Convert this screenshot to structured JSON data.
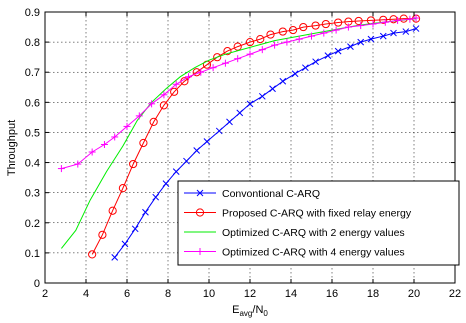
{
  "chart_data": {
    "type": "line",
    "title": "",
    "xlabel": "E_avg/N_0",
    "xlabel_parts": {
      "base": "E",
      "sub1": "avg",
      "slash": "/N",
      "sub2": "0"
    },
    "ylabel": "Throughput",
    "xlim": [
      2,
      22
    ],
    "ylim": [
      0,
      0.9
    ],
    "xticks": [
      2,
      4,
      6,
      8,
      10,
      12,
      14,
      16,
      18,
      20,
      22
    ],
    "yticks": [
      0,
      0.1,
      0.2,
      0.3,
      0.4,
      0.5,
      0.6,
      0.7,
      0.8,
      0.9
    ],
    "xtick_labels": [
      "2",
      "4",
      "6",
      "8",
      "10",
      "12",
      "14",
      "16",
      "18",
      "20",
      "22"
    ],
    "ytick_labels": [
      "0",
      "0.1",
      "0.2",
      "0.3",
      "0.4",
      "0.5",
      "0.6",
      "0.7",
      "0.8",
      "0.9"
    ],
    "grid": true,
    "legend_position": "bottom-right",
    "series": [
      {
        "name": "Convontional C-ARQ",
        "color": "#0000ff",
        "marker": "x",
        "x": [
          5.4,
          5.9,
          6.4,
          6.9,
          7.4,
          7.9,
          8.4,
          8.9,
          9.4,
          9.9,
          10.5,
          11.0,
          11.5,
          12.0,
          12.6,
          13.1,
          13.6,
          14.2,
          14.7,
          15.2,
          15.8,
          16.3,
          16.9,
          17.4,
          17.9,
          18.5,
          19.0,
          19.6,
          20.1
        ],
        "y": [
          0.085,
          0.13,
          0.18,
          0.235,
          0.285,
          0.33,
          0.37,
          0.405,
          0.44,
          0.47,
          0.505,
          0.535,
          0.565,
          0.595,
          0.62,
          0.645,
          0.67,
          0.695,
          0.715,
          0.735,
          0.755,
          0.77,
          0.785,
          0.8,
          0.81,
          0.82,
          0.83,
          0.835,
          0.845
        ]
      },
      {
        "name": "Proposed C-ARQ  with fixed relay energy",
        "color": "#ff0000",
        "marker": "o",
        "x": [
          4.3,
          4.8,
          5.3,
          5.8,
          6.3,
          6.8,
          7.3,
          7.8,
          8.3,
          8.8,
          9.4,
          9.9,
          10.4,
          10.9,
          11.4,
          12.0,
          12.5,
          13.0,
          13.6,
          14.1,
          14.6,
          15.2,
          15.7,
          16.3,
          16.8,
          17.3,
          17.9,
          18.5,
          19.0,
          19.5,
          20.1
        ],
        "y": [
          0.095,
          0.16,
          0.24,
          0.315,
          0.395,
          0.465,
          0.535,
          0.59,
          0.635,
          0.67,
          0.7,
          0.725,
          0.75,
          0.77,
          0.785,
          0.8,
          0.81,
          0.825,
          0.835,
          0.84,
          0.85,
          0.855,
          0.86,
          0.865,
          0.868,
          0.87,
          0.872,
          0.874,
          0.876,
          0.878,
          0.878
        ]
      },
      {
        "name": "Optimized C-ARQ with 2 energy values",
        "color": "#00ee00",
        "marker": "none",
        "x": [
          2.8,
          3.5,
          4.2,
          5.0,
          5.8,
          6.5,
          7.2,
          7.9,
          8.6,
          9.3,
          10.0,
          10.8,
          11.6,
          12.4,
          13.2,
          14.0,
          14.8,
          15.6,
          16.4,
          17.2,
          18.0,
          18.8,
          19.6,
          20.1
        ],
        "y": [
          0.115,
          0.175,
          0.275,
          0.37,
          0.455,
          0.54,
          0.6,
          0.645,
          0.685,
          0.715,
          0.74,
          0.76,
          0.775,
          0.79,
          0.805,
          0.815,
          0.825,
          0.835,
          0.845,
          0.855,
          0.862,
          0.868,
          0.874,
          0.878
        ]
      },
      {
        "name": "Optimized C-ARQ with 4 energy values",
        "color": "#ff00ff",
        "marker": "+",
        "x": [
          2.8,
          3.6,
          4.3,
          4.9,
          5.4,
          6.0,
          6.6,
          7.2,
          7.8,
          8.4,
          9.0,
          9.6,
          10.2,
          10.8,
          11.4,
          12.0,
          12.6,
          13.2,
          13.8,
          14.4,
          15.0,
          15.6,
          16.2,
          16.8,
          17.4,
          18.0,
          18.6,
          19.2,
          19.8,
          20.1
        ],
        "y": [
          0.38,
          0.395,
          0.435,
          0.46,
          0.485,
          0.52,
          0.555,
          0.595,
          0.625,
          0.66,
          0.685,
          0.7,
          0.715,
          0.73,
          0.745,
          0.76,
          0.775,
          0.79,
          0.8,
          0.81,
          0.82,
          0.83,
          0.84,
          0.85,
          0.855,
          0.86,
          0.866,
          0.872,
          0.876,
          0.88
        ]
      }
    ]
  }
}
